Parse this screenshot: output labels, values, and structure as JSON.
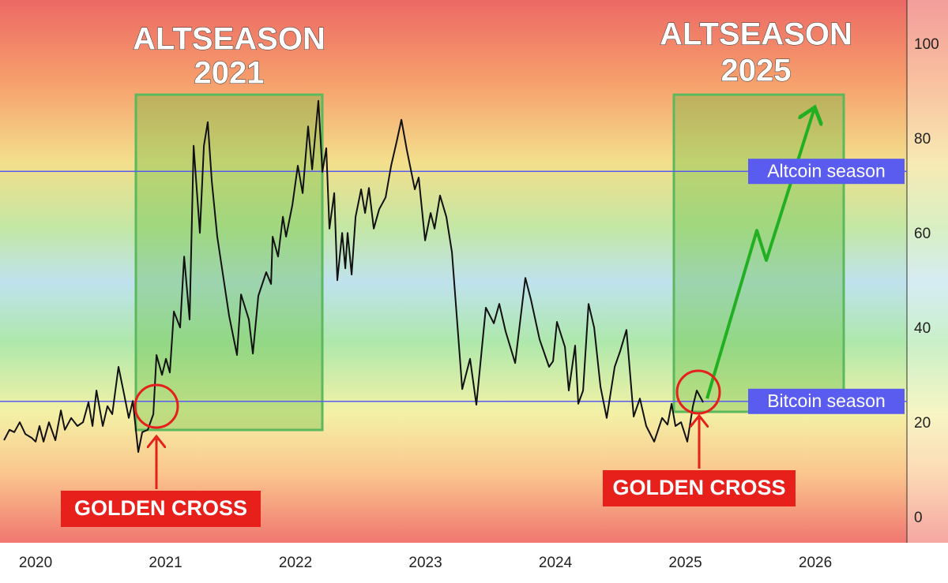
{
  "chart_data": {
    "type": "line",
    "xlim": [
      2019.726,
      2026.705
    ],
    "ylim": [
      -5.17,
      109.5
    ],
    "xticks": [
      2020,
      2021,
      2022,
      2023,
      2024,
      2025,
      2026
    ],
    "yticks": [
      0,
      20,
      40,
      60,
      80,
      100
    ],
    "series": [
      {
        "color": "#111111",
        "x": [
          2019.757,
          2019.799,
          2019.836,
          2019.878,
          2019.921,
          2019.97,
          2020.0,
          2020.03,
          2020.061,
          2020.103,
          2020.152,
          2020.195,
          2020.225,
          2020.274,
          2020.322,
          2020.365,
          2020.407,
          2020.438,
          2020.468,
          2020.517,
          2020.553,
          2020.59,
          2020.638,
          2020.681,
          2020.717,
          2020.748,
          2020.79,
          2020.821,
          2020.863,
          2020.906,
          2020.93,
          2020.973,
          2021.003,
          2021.033,
          2021.064,
          2021.112,
          2021.143,
          2021.185,
          2021.216,
          2021.264,
          2021.295,
          2021.325,
          2021.356,
          2021.398,
          2021.489,
          2021.55,
          2021.581,
          2021.641,
          2021.672,
          2021.714,
          2021.775,
          2021.812,
          2021.824,
          2021.866,
          2021.903,
          2021.927,
          2021.976,
          2022.018,
          2022.055,
          2022.097,
          2022.128,
          2022.176,
          2022.207,
          2022.237,
          2022.261,
          2022.298,
          2022.322,
          2022.359,
          2022.383,
          2022.401,
          2022.432,
          2022.462,
          2022.505,
          2022.535,
          2022.565,
          2022.602,
          2022.644,
          2022.693,
          2022.736,
          2022.778,
          2022.815,
          2022.857,
          2022.918,
          2022.948,
          2022.997,
          2023.04,
          2023.07,
          2023.112,
          2023.161,
          2023.204,
          2023.283,
          2023.343,
          2023.392,
          2023.465,
          2023.526,
          2023.568,
          2023.617,
          2023.69,
          2023.769,
          2023.812,
          2023.878,
          2023.951,
          2023.982,
          2024.012,
          2024.073,
          2024.103,
          2024.152,
          2024.176,
          2024.213,
          2024.255,
          2024.298,
          2024.347,
          2024.395,
          2024.456,
          2024.498,
          2024.547,
          2024.602,
          2024.65,
          2024.699,
          2024.76,
          2024.821,
          2024.863,
          2024.894,
          2024.924,
          2024.967,
          2025.015,
          2025.058,
          2025.088,
          2025.137
        ],
        "values": [
          16.5,
          18.7,
          18.2,
          20.3,
          17.8,
          17,
          16.2,
          19.5,
          16.2,
          20.3,
          16.5,
          22.8,
          18.7,
          21.2,
          19.5,
          20.3,
          24.5,
          19.5,
          27,
          19.5,
          23.7,
          22,
          32,
          26.2,
          21.2,
          24.8,
          14,
          18.2,
          18.7,
          22,
          34.5,
          30.3,
          33.7,
          30.8,
          43.7,
          40.3,
          55.3,
          42,
          78.7,
          60.3,
          78.7,
          83.7,
          71.2,
          59.5,
          42.8,
          34.5,
          47.3,
          42,
          34.8,
          47,
          52,
          49.5,
          59.5,
          55.3,
          63.7,
          59.5,
          66.2,
          74.5,
          68.7,
          82.8,
          73.7,
          88.2,
          73.2,
          78.2,
          61.2,
          68.7,
          50.3,
          60.3,
          52.8,
          60.3,
          51.5,
          63.7,
          69.5,
          64.5,
          69.8,
          61.2,
          65.3,
          67.8,
          74.5,
          79.5,
          84.2,
          77.8,
          69.5,
          72,
          58.7,
          64.5,
          61.2,
          68.2,
          63.7,
          56.2,
          27.3,
          33.7,
          24,
          44.5,
          41.2,
          45.3,
          39.5,
          32.8,
          50.8,
          46.2,
          37.8,
          32,
          33.2,
          41.5,
          36.2,
          27,
          36.5,
          24.2,
          27,
          45.3,
          40.3,
          27.8,
          21.2,
          32,
          35.3,
          39.8,
          21.5,
          25.3,
          19.5,
          16.2,
          21.2,
          19.8,
          24.2,
          19.5,
          20.3,
          16.2,
          23.7,
          27,
          24.5
        ]
      },
      {
        "color": "#22b022",
        "x": [
          2025.167,
          2025.55,
          2025.623,
          2025.988
        ],
        "values": [
          25.3,
          60.8,
          54.5,
          86.2
        ]
      }
    ],
    "hlines": [
      {
        "value": 73.3,
        "label": "Altcoin season",
        "color": "#5a5cf0"
      },
      {
        "value": 24.7,
        "label": "Bitcoin season",
        "color": "#5a5cf0"
      }
    ],
    "annotations": [
      {
        "lines": [
          "ALTSEASON",
          "2021"
        ]
      },
      {
        "lines": [
          "ALTSEASON",
          "2025"
        ]
      },
      {
        "text": "GOLDEN CROSS"
      },
      {
        "text": "GOLDEN CROSS"
      }
    ]
  }
}
